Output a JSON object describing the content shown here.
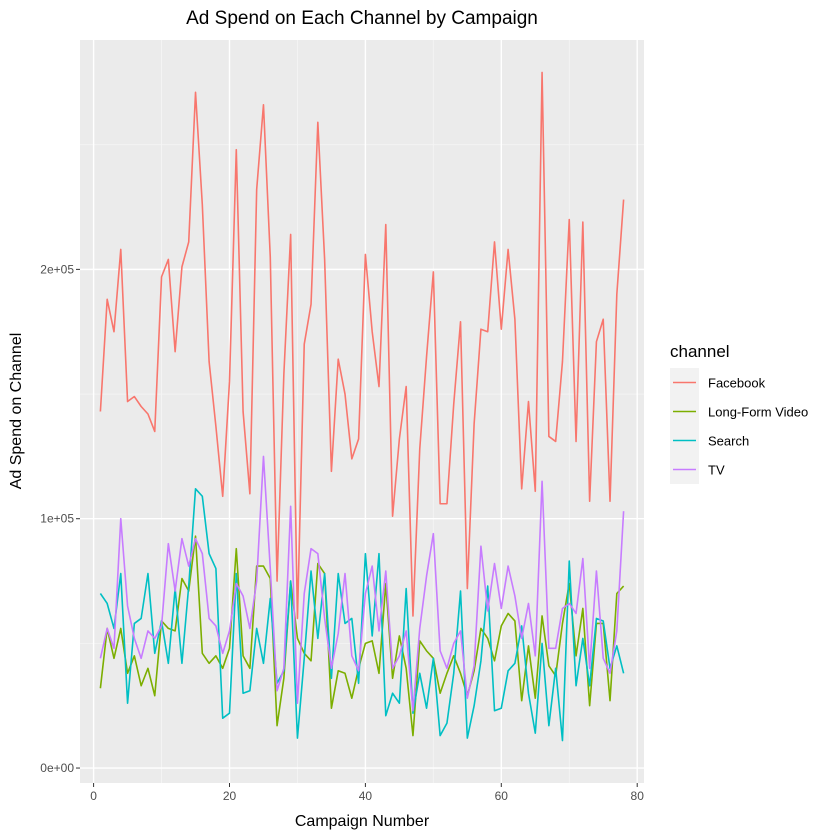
{
  "chart_data": {
    "type": "line",
    "title": "Ad Spend on Each Channel by Campaign",
    "xlabel": "Campaign Number",
    "ylabel": "Ad Spend on Channel",
    "xlim": [
      -2,
      81
    ],
    "ylim": [
      -6000,
      292000
    ],
    "x_ticks": [
      0,
      20,
      40,
      60,
      80
    ],
    "x_tick_labels": [
      "0",
      "20",
      "40",
      "60",
      "80"
    ],
    "y_ticks": [
      0,
      100000,
      200000
    ],
    "y_tick_labels": [
      "0e+00",
      "1e+05",
      "2e+05"
    ],
    "grid": true,
    "legend_title": "channel",
    "legend_position": "right",
    "x": [
      1,
      2,
      3,
      4,
      5,
      6,
      7,
      8,
      9,
      10,
      11,
      12,
      13,
      14,
      15,
      16,
      17,
      18,
      19,
      20,
      21,
      22,
      23,
      24,
      25,
      26,
      27,
      28,
      29,
      30,
      31,
      32,
      33,
      34,
      35,
      36,
      37,
      38,
      39,
      40,
      41,
      42,
      43,
      44,
      45,
      46,
      47,
      48,
      49,
      50,
      51,
      52,
      53,
      54,
      55,
      56,
      57,
      58,
      59,
      60,
      61,
      62,
      63,
      64,
      65,
      66,
      67,
      68,
      69,
      70,
      71,
      72,
      73,
      74,
      75,
      76,
      77,
      78
    ],
    "series": [
      {
        "name": "Facebook",
        "color": "#F8766D",
        "values": [
          143000,
          188000,
          175000,
          208000,
          147000,
          149000,
          145000,
          142000,
          135000,
          197000,
          204000,
          167000,
          201000,
          211000,
          271000,
          226000,
          163000,
          137000,
          109000,
          155000,
          248000,
          143000,
          110000,
          232000,
          266000,
          205000,
          75000,
          158000,
          214000,
          60000,
          170000,
          186000,
          259000,
          204000,
          119000,
          164000,
          150000,
          124000,
          132000,
          206000,
          175000,
          153000,
          218000,
          101000,
          132000,
          153000,
          61000,
          128000,
          165000,
          199000,
          106000,
          106000,
          146000,
          179000,
          72000,
          138000,
          176000,
          175000,
          211000,
          176000,
          208000,
          180000,
          112000,
          147000,
          111000,
          279000,
          133000,
          131000,
          163000,
          220000,
          131000,
          219000,
          107000,
          171000,
          180000,
          107000,
          190000,
          228000
        ]
      },
      {
        "name": "Long-Form Video",
        "color": "#7CAE00",
        "values": [
          32000,
          56000,
          44000,
          56000,
          38000,
          45000,
          33000,
          40000,
          29000,
          59000,
          56000,
          55000,
          76000,
          71000,
          93000,
          46000,
          42000,
          45000,
          40000,
          48000,
          88000,
          45000,
          40000,
          81000,
          81000,
          76000,
          17000,
          36000,
          75000,
          52000,
          46000,
          43000,
          82000,
          78000,
          24000,
          39000,
          38000,
          28000,
          40000,
          50000,
          51000,
          38000,
          74000,
          36000,
          53000,
          40000,
          13000,
          51000,
          47000,
          44000,
          30000,
          38000,
          45000,
          38000,
          29000,
          39000,
          56000,
          52000,
          43000,
          57000,
          62000,
          59000,
          27000,
          49000,
          28000,
          61000,
          41000,
          37000,
          58000,
          74000,
          45000,
          64000,
          25000,
          58000,
          58000,
          27000,
          70000,
          73000
        ]
      },
      {
        "name": "Search",
        "color": "#00BFC4",
        "values": [
          70000,
          66000,
          56000,
          78000,
          26000,
          58000,
          60000,
          78000,
          46000,
          59000,
          42000,
          72000,
          42000,
          73000,
          112000,
          109000,
          86000,
          80000,
          20000,
          22000,
          78000,
          30000,
          31000,
          56000,
          42000,
          68000,
          34000,
          39000,
          75000,
          12000,
          44000,
          79000,
          52000,
          78000,
          36000,
          78000,
          58000,
          60000,
          34000,
          86000,
          53000,
          86000,
          21000,
          30000,
          26000,
          72000,
          22000,
          38000,
          24000,
          44000,
          13000,
          18000,
          38000,
          71000,
          12000,
          25000,
          43000,
          73000,
          23000,
          24000,
          39000,
          42000,
          57000,
          30000,
          14000,
          50000,
          17000,
          40000,
          11000,
          83000,
          33000,
          52000,
          33000,
          60000,
          59000,
          40000,
          49000,
          38000
        ]
      },
      {
        "name": "TV",
        "color": "#C77CFF",
        "values": [
          44000,
          56000,
          48000,
          100000,
          65000,
          52000,
          44000,
          55000,
          52000,
          57000,
          90000,
          71000,
          92000,
          81000,
          92000,
          86000,
          60000,
          57000,
          46000,
          55000,
          74000,
          69000,
          56000,
          75000,
          125000,
          80000,
          31000,
          40000,
          105000,
          26000,
          70000,
          88000,
          86000,
          60000,
          40000,
          54000,
          78000,
          45000,
          39000,
          70000,
          81000,
          55000,
          79000,
          40000,
          45000,
          55000,
          23000,
          56000,
          77000,
          94000,
          47000,
          40000,
          50000,
          55000,
          28000,
          41000,
          89000,
          63000,
          82000,
          64000,
          81000,
          69000,
          52000,
          66000,
          45000,
          115000,
          48000,
          48000,
          64000,
          66000,
          62000,
          84000,
          40000,
          79000,
          44000,
          38000,
          55000,
          103000
        ]
      }
    ]
  }
}
